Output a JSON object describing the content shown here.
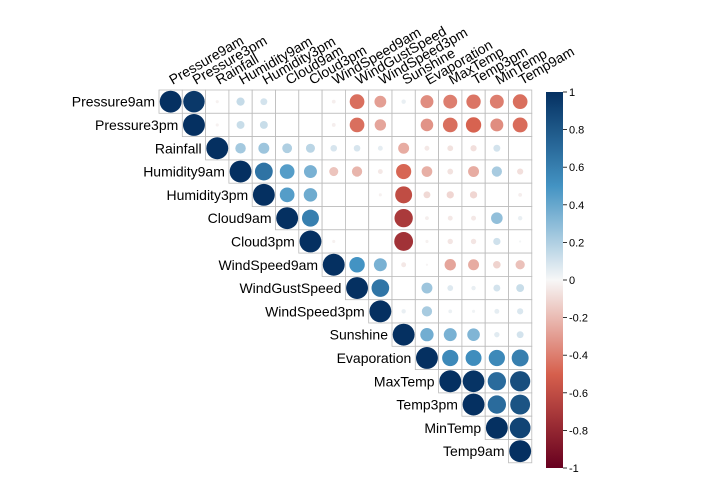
{
  "chart_data": {
    "type": "heatmap",
    "variant": "correlation-upper-circles",
    "title": "",
    "variables": [
      "Pressure9am",
      "Pressure3pm",
      "Rainfall",
      "Humidity9am",
      "Humidity3pm",
      "Cloud9am",
      "Cloud3pm",
      "WindSpeed9am",
      "WindGustSpeed",
      "WindSpeed3pm",
      "Sunshine",
      "Evaporation",
      "MaxTemp",
      "Temp3pm",
      "MinTemp",
      "Temp9am"
    ],
    "matrix": [
      [
        1.0,
        0.96,
        -0.02,
        0.14,
        0.1,
        0.0,
        0.0,
        -0.03,
        -0.45,
        -0.29,
        0.04,
        -0.35,
        -0.4,
        -0.43,
        -0.4,
        -0.45
      ],
      [
        0.96,
        1.0,
        -0.02,
        0.13,
        0.13,
        0.0,
        0.0,
        -0.03,
        -0.45,
        -0.27,
        0.0,
        -0.33,
        -0.45,
        -0.49,
        -0.35,
        -0.46
      ],
      [
        -0.02,
        -0.02,
        1.0,
        0.23,
        0.25,
        0.2,
        0.17,
        0.09,
        0.09,
        0.05,
        -0.25,
        -0.05,
        -0.07,
        -0.08,
        0.1,
        0.0
      ],
      [
        0.14,
        0.13,
        0.23,
        1.0,
        0.66,
        0.45,
        0.35,
        -0.17,
        -0.22,
        -0.05,
        -0.48,
        -0.24,
        -0.07,
        -0.25,
        0.22,
        -0.08
      ],
      [
        0.1,
        0.13,
        0.25,
        0.66,
        1.0,
        0.45,
        0.38,
        0.0,
        0.0,
        -0.02,
        -0.6,
        -0.1,
        -0.11,
        -0.11,
        0.0,
        -0.03
      ],
      [
        0.0,
        0.0,
        0.2,
        0.45,
        0.45,
        1.0,
        0.6,
        0.0,
        0.0,
        0.0,
        -0.7,
        -0.03,
        -0.05,
        -0.05,
        0.28,
        0.04
      ],
      [
        0.0,
        0.0,
        0.17,
        0.35,
        0.38,
        0.6,
        1.0,
        -0.02,
        0.0,
        0.0,
        -0.74,
        -0.02,
        -0.06,
        -0.06,
        0.11,
        0.01
      ],
      [
        -0.03,
        -0.03,
        0.09,
        -0.17,
        0.0,
        0.0,
        -0.02,
        1.0,
        0.5,
        0.35,
        -0.05,
        -0.01,
        -0.27,
        -0.25,
        -0.12,
        -0.18
      ],
      [
        -0.45,
        -0.45,
        0.09,
        -0.22,
        0.0,
        0.0,
        0.0,
        0.5,
        1.0,
        0.65,
        0.0,
        0.25,
        0.07,
        0.04,
        0.1,
        0.13
      ],
      [
        -0.29,
        -0.27,
        0.05,
        -0.05,
        -0.02,
        0.0,
        0.0,
        0.35,
        0.65,
        1.0,
        0.04,
        0.22,
        0.03,
        0.02,
        0.05,
        0.08
      ],
      [
        0.04,
        0.0,
        -0.25,
        -0.48,
        -0.6,
        -0.7,
        -0.74,
        -0.05,
        0.0,
        0.04,
        1.0,
        0.37,
        0.35,
        0.33,
        0.06,
        0.1
      ],
      [
        -0.35,
        -0.33,
        -0.05,
        -0.24,
        -0.1,
        -0.03,
        -0.02,
        -0.01,
        0.25,
        0.22,
        0.37,
        1.0,
        0.55,
        0.53,
        0.55,
        0.6
      ],
      [
        -0.4,
        -0.45,
        -0.07,
        -0.07,
        -0.11,
        -0.05,
        -0.06,
        -0.27,
        0.07,
        0.03,
        0.35,
        0.55,
        1.0,
        0.98,
        0.7,
        0.85
      ],
      [
        -0.43,
        -0.49,
        -0.08,
        -0.25,
        -0.11,
        -0.05,
        -0.06,
        -0.25,
        0.04,
        0.02,
        0.33,
        0.53,
        0.98,
        1.0,
        0.7,
        0.82
      ],
      [
        -0.4,
        -0.35,
        0.1,
        0.22,
        0.0,
        0.28,
        0.11,
        -0.12,
        0.1,
        0.05,
        0.06,
        0.55,
        0.7,
        0.7,
        1.0,
        0.9
      ],
      [
        -0.45,
        -0.46,
        0.0,
        -0.08,
        -0.03,
        0.04,
        0.01,
        -0.18,
        0.13,
        0.08,
        0.1,
        0.6,
        0.85,
        0.82,
        0.9,
        1.0
      ]
    ],
    "colorbar": {
      "range": [
        -1,
        1
      ],
      "ticks": [
        "1",
        "0.8",
        "0.6",
        "0.4",
        "0.2",
        "0",
        "-0.2",
        "-0.4",
        "-0.6",
        "-0.8",
        "-1"
      ]
    },
    "colors": {
      "negative_end": "#67001f",
      "negative_mid": "#d6604d",
      "neutral": "#f7f7f7",
      "positive_mid": "#4393c3",
      "positive_end": "#053061",
      "grid": "#bbbbbb"
    },
    "grid": true,
    "legend_position": "right"
  }
}
